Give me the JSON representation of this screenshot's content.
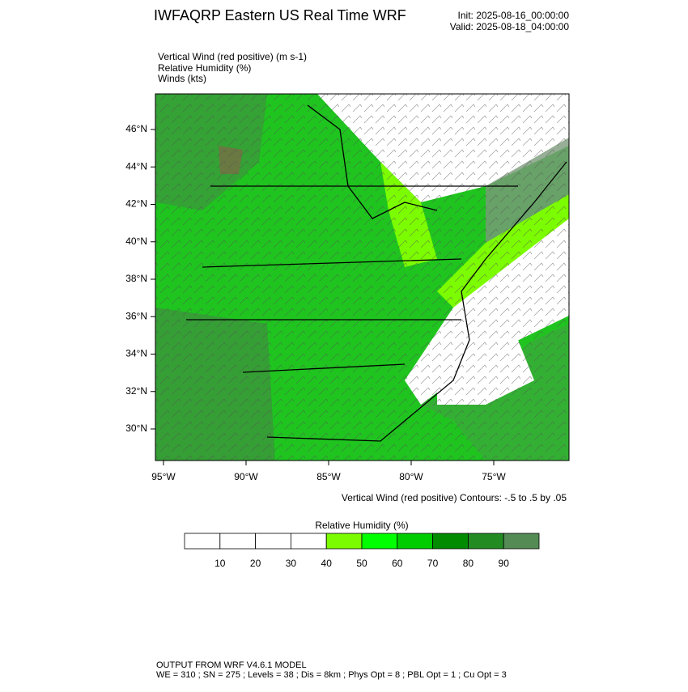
{
  "header": {
    "title": "IWFAQRP Eastern US Real Time WRF",
    "init": "Init: 2025-08-16_00:00:00",
    "valid": "Valid: 2025-08-18_04:00:00"
  },
  "fields": [
    "Vertical Wind (red positive)   (m s-1)",
    "Relative Humidity   (%)",
    "Winds   (kts)"
  ],
  "map": {
    "lat_labels": [
      "46°N",
      "44°N",
      "42°N",
      "40°N",
      "38°N",
      "36°N",
      "34°N",
      "32°N",
      "30°N"
    ],
    "lon_labels": [
      "95°W",
      "90°W",
      "85°W",
      "80°W",
      "75°W"
    ],
    "contour_note": "Vertical Wind (red positive) Contours: -.5 to .5 by .05"
  },
  "colorbar": {
    "title": "Relative Humidity  (%)",
    "labels": [
      "10",
      "20",
      "30",
      "40",
      "50",
      "60",
      "70",
      "80",
      "90"
    ],
    "colors": [
      "#ffffff",
      "#ffffff",
      "#ffffff",
      "#ffffff",
      "#7cfc00",
      "#00ff00",
      "#00cd00",
      "#008b00",
      "#228b22",
      "#548b54"
    ]
  },
  "footer": [
    "OUTPUT FROM WRF V4.6.1 MODEL",
    "WE = 310 ; SN = 275 ; Levels = 38 ; Dis = 8km ; Phys Opt = 8 ; PBL Opt = 1 ; Cu Opt = 3"
  ]
}
